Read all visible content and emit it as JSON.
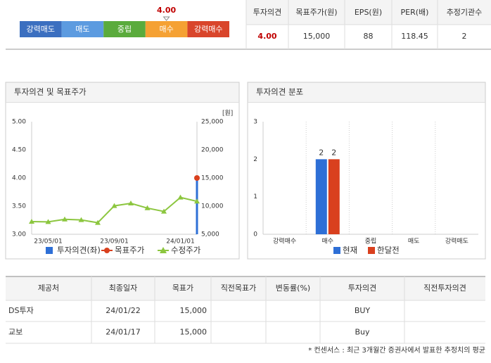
{
  "opinion_bar": {
    "segments": [
      "강력매도",
      "매도",
      "중립",
      "매수",
      "강력매수"
    ],
    "colors": [
      "#3b6fc0",
      "#5c9be0",
      "#5aab3c",
      "#f5a133",
      "#d9452b"
    ],
    "value": 4,
    "value_label": "4.00"
  },
  "summary": {
    "headers": [
      "투자의견",
      "목표주가(원)",
      "EPS(원)",
      "PER(배)",
      "추정기관수"
    ],
    "values": [
      "4.00",
      "15,000",
      "88",
      "118.45",
      "2"
    ]
  },
  "chart_data": [
    {
      "type": "line",
      "title": "투자의견 및 목표주가",
      "y2_unit": "[원]",
      "categories": [
        null,
        "23/05/01",
        null,
        null,
        null,
        "23/09/01",
        null,
        null,
        null,
        "24/01/01",
        null
      ],
      "ylim": [
        3,
        5
      ],
      "yticks": [
        {
          "value": 3,
          "label": "3.00"
        },
        {
          "value": 3.5,
          "label": "3.50"
        },
        {
          "value": 4,
          "label": "4.00"
        },
        {
          "value": 4.5,
          "label": "4.50"
        },
        {
          "value": 5,
          "label": "5.00"
        }
      ],
      "y2lim": [
        5000,
        25000
      ],
      "y2ticks": [
        {
          "value": 5000,
          "label": "5,000"
        },
        {
          "value": 10000,
          "label": "10,000"
        },
        {
          "value": 15000,
          "label": "15,000"
        },
        {
          "value": 20000,
          "label": "20,000"
        },
        {
          "value": 25000,
          "label": "25,000"
        }
      ],
      "series": [
        {
          "name": "투자의견(좌)",
          "color": "#2e6fd6",
          "type": "bar",
          "values": [
            null,
            null,
            null,
            null,
            null,
            null,
            null,
            null,
            null,
            null,
            4
          ]
        },
        {
          "name": "목표주가",
          "color": "#d9401e",
          "type": "dot",
          "axis": "y2",
          "values": [
            null,
            null,
            null,
            null,
            null,
            null,
            null,
            null,
            null,
            null,
            15000
          ]
        },
        {
          "name": "수정주가",
          "color": "#8cc63f",
          "type": "line",
          "axis": "y2",
          "values": [
            7250,
            7200,
            7650,
            7550,
            7050,
            10050,
            10500,
            9650,
            9050,
            11550,
            10850
          ]
        }
      ]
    },
    {
      "type": "bar",
      "title": "투자의견 분포",
      "categories": [
        "강력매수",
        "매수",
        "중립",
        "매도",
        "강력매도"
      ],
      "ylim": [
        0,
        3
      ],
      "yticks": [
        0,
        1,
        2,
        3
      ],
      "series": [
        {
          "name": "현재",
          "color": "#2e6fd6",
          "values": [
            0,
            2,
            0,
            0,
            0
          ]
        },
        {
          "name": "한달전",
          "color": "#d9401e",
          "values": [
            0,
            2,
            0,
            0,
            0
          ]
        }
      ]
    }
  ],
  "table": {
    "headers": [
      "제공처",
      "최종일자",
      "목표가",
      "직전목표가",
      "변동률(%)",
      "투자의견",
      "직전투자의견"
    ],
    "rows": [
      [
        "DS투자",
        "24/01/22",
        "15,000",
        null,
        null,
        "BUY",
        null
      ],
      [
        "교보",
        "24/01/17",
        "15,000",
        null,
        null,
        "Buy",
        null
      ]
    ]
  },
  "footnote": "* 컨센서스 : 최근 3개월간 증권사에서 발표한 추정치의 평균"
}
